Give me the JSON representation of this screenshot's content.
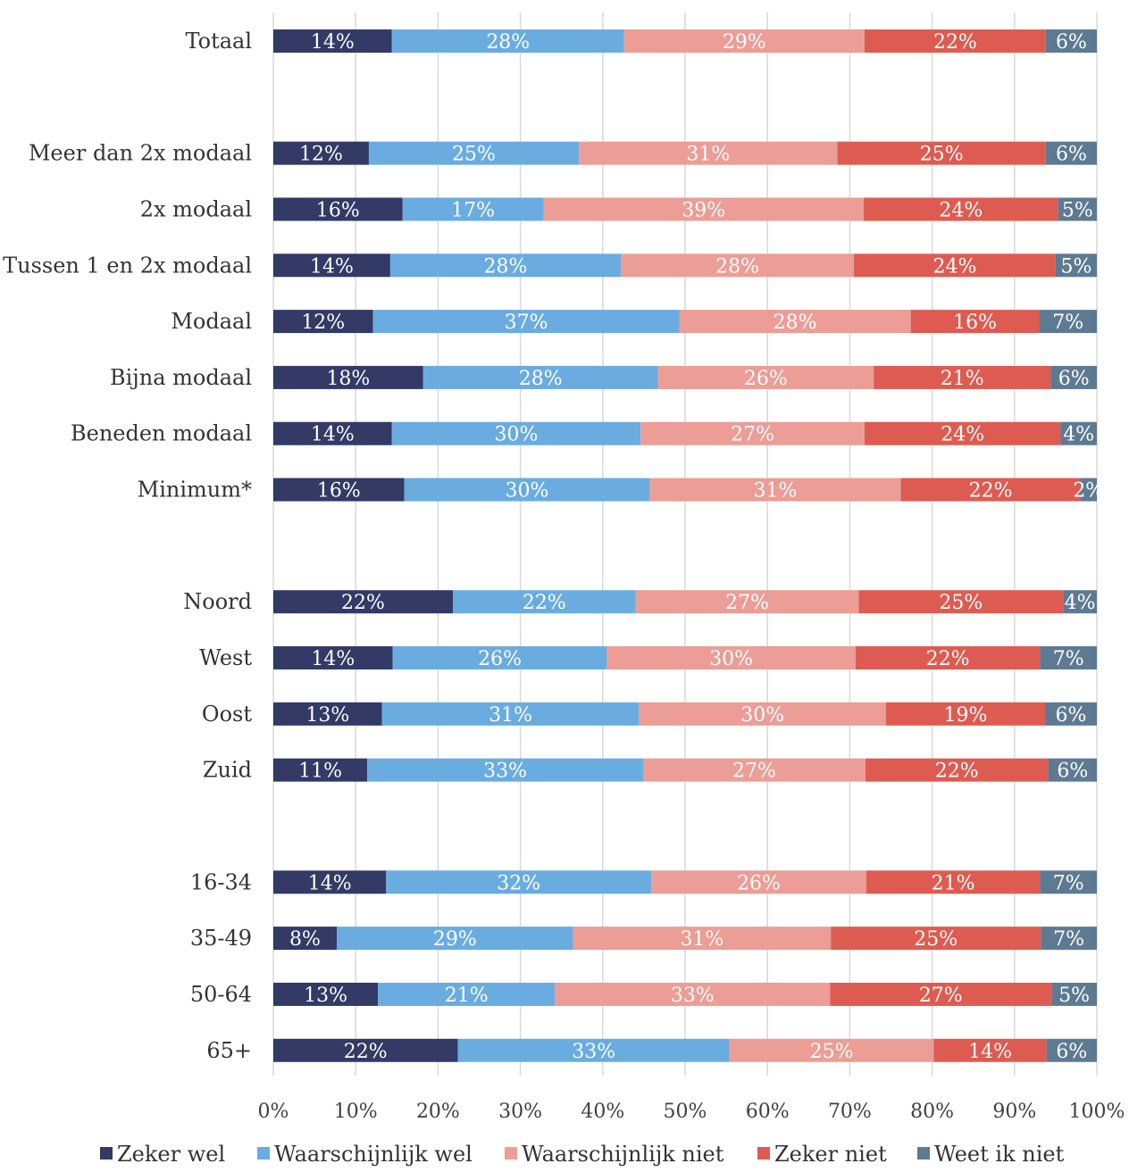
{
  "chart_data": {
    "type": "bar",
    "orientation": "horizontal",
    "stacked": "percent",
    "title": "",
    "xlabel": "",
    "ylabel": "",
    "xlim": [
      0,
      100
    ],
    "x_ticks": [
      "0%",
      "10%",
      "20%",
      "30%",
      "40%",
      "50%",
      "60%",
      "70%",
      "80%",
      "90%",
      "100%"
    ],
    "grid": "vertical",
    "legend_position": "bottom",
    "categories": [
      "Totaal",
      "",
      "Meer dan 2x modaal",
      "2x modaal",
      "Tussen 1 en 2x modaal",
      "Modaal",
      "Bijna modaal",
      "Beneden modaal",
      "Minimum*",
      "",
      "Noord",
      "West",
      "Oost",
      "Zuid",
      "",
      "16-34",
      "35-49",
      "50-64",
      "65+"
    ],
    "series": [
      {
        "name": "Zeker wel",
        "color": "#323a65",
        "values": [
          14.4,
          null,
          11.6,
          15.7,
          14.2,
          12.1,
          18.2,
          14.4,
          15.9,
          null,
          21.8,
          14.5,
          13.2,
          11.4,
          null,
          13.7,
          7.7,
          12.7,
          22.4
        ]
      },
      {
        "name": "Waarschijnlijk wel",
        "color": "#6aace0",
        "values": [
          28.2,
          null,
          25.5,
          17.1,
          28.0,
          37.2,
          28.5,
          30.2,
          29.8,
          null,
          22.2,
          26.0,
          31.2,
          33.5,
          null,
          32.2,
          28.7,
          21.5,
          33.0
        ]
      },
      {
        "name": "Waarschijnlijk niet",
        "color": "#eb9d96",
        "values": [
          29.2,
          null,
          31.4,
          38.9,
          28.3,
          28.1,
          26.2,
          27.2,
          30.5,
          null,
          27.1,
          30.2,
          30.0,
          27.0,
          null,
          26.1,
          31.3,
          33.4,
          24.8
        ]
      },
      {
        "name": "Zeker niet",
        "color": "#de5b51",
        "values": [
          22.0,
          null,
          25.3,
          23.6,
          24.5,
          15.6,
          21.5,
          23.8,
          21.8,
          null,
          24.8,
          22.4,
          19.3,
          22.2,
          null,
          21.1,
          25.5,
          26.9,
          13.7
        ]
      },
      {
        "name": "Weet ik niet",
        "color": "#5e7a92",
        "values": [
          6.2,
          null,
          6.2,
          4.7,
          5.0,
          7.0,
          5.6,
          4.4,
          2.0,
          null,
          4.1,
          6.9,
          6.3,
          5.9,
          null,
          6.9,
          6.8,
          5.5,
          6.1
        ]
      }
    ],
    "value_labels": [
      [
        "14%",
        "28%",
        "29%",
        "22%",
        "6%"
      ],
      null,
      [
        "12%",
        "25%",
        "31%",
        "25%",
        "6%"
      ],
      [
        "16%",
        "17%",
        "39%",
        "24%",
        "5%"
      ],
      [
        "14%",
        "28%",
        "28%",
        "24%",
        "5%"
      ],
      [
        "12%",
        "37%",
        "28%",
        "16%",
        "7%"
      ],
      [
        "18%",
        "28%",
        "26%",
        "21%",
        "6%"
      ],
      [
        "14%",
        "30%",
        "27%",
        "24%",
        "4%"
      ],
      [
        "16%",
        "30%",
        "31%",
        "22%",
        "2%"
      ],
      null,
      [
        "22%",
        "22%",
        "27%",
        "25%",
        "4%"
      ],
      [
        "14%",
        "26%",
        "30%",
        "22%",
        "7%"
      ],
      [
        "13%",
        "31%",
        "30%",
        "19%",
        "6%"
      ],
      [
        "11%",
        "33%",
        "27%",
        "22%",
        "6%"
      ],
      null,
      [
        "14%",
        "32%",
        "26%",
        "21%",
        "7%"
      ],
      [
        "8%",
        "29%",
        "31%",
        "25%",
        "7%"
      ],
      [
        "13%",
        "21%",
        "33%",
        "27%",
        "5%"
      ],
      [
        "22%",
        "33%",
        "25%",
        "14%",
        "6%"
      ]
    ]
  }
}
